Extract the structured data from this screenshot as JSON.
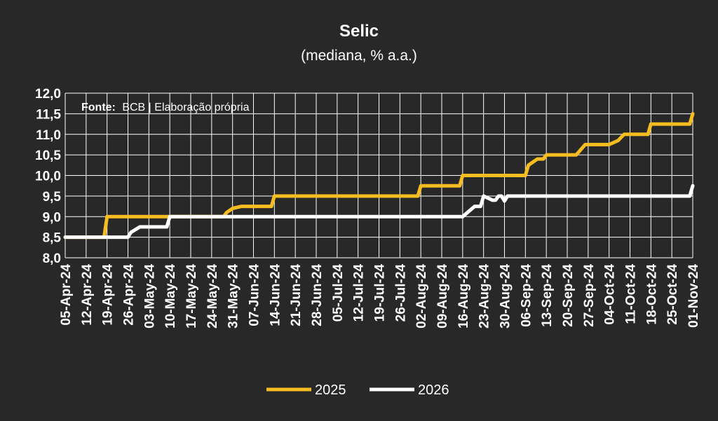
{
  "chart_data": {
    "type": "line",
    "title": "Selic",
    "subtitle": "(mediana, % a.a.)",
    "source_label": "Fonte:",
    "source_text": "BCB | Elaboração própria",
    "ylim": [
      8.0,
      12.0
    ],
    "yticks": [
      "12,0",
      "11,5",
      "11,0",
      "10,5",
      "10,0",
      "9,5",
      "9,0",
      "8,5",
      "8,0"
    ],
    "xlim": [
      "2024-04-05",
      "2024-11-01"
    ],
    "xticks": [
      "05-Apr-24",
      "12-Apr-24",
      "19-Apr-24",
      "26-Apr-24",
      "03-May-24",
      "10-May-24",
      "17-May-24",
      "24-May-24",
      "31-May-24",
      "07-Jun-24",
      "14-Jun-24",
      "21-Jun-24",
      "28-Jun-24",
      "05-Jul-24",
      "12-Jul-24",
      "19-Jul-24",
      "26-Jul-24",
      "02-Aug-24",
      "09-Aug-24",
      "16-Aug-24",
      "23-Aug-24",
      "30-Aug-24",
      "06-Sep-24",
      "13-Sep-24",
      "20-Sep-24",
      "27-Sep-24",
      "04-Oct-24",
      "11-Oct-24",
      "18-Oct-24",
      "25-Oct-24",
      "01-Nov-24"
    ],
    "grid": true,
    "legend_position": "bottom",
    "series": [
      {
        "name": "2025",
        "color": "#f5bd1f",
        "points": [
          [
            "2024-04-05",
            8.5
          ],
          [
            "2024-04-18",
            8.5
          ],
          [
            "2024-04-19",
            9.0
          ],
          [
            "2024-05-10",
            9.0
          ],
          [
            "2024-05-28",
            9.0
          ],
          [
            "2024-05-29",
            9.1
          ],
          [
            "2024-05-31",
            9.2
          ],
          [
            "2024-06-03",
            9.25
          ],
          [
            "2024-06-13",
            9.25
          ],
          [
            "2024-06-14",
            9.5
          ],
          [
            "2024-08-01",
            9.5
          ],
          [
            "2024-08-02",
            9.75
          ],
          [
            "2024-08-15",
            9.75
          ],
          [
            "2024-08-16",
            10.0
          ],
          [
            "2024-09-06",
            10.0
          ],
          [
            "2024-09-07",
            10.25
          ],
          [
            "2024-09-10",
            10.4
          ],
          [
            "2024-09-12",
            10.4
          ],
          [
            "2024-09-13",
            10.5
          ],
          [
            "2024-09-23",
            10.5
          ],
          [
            "2024-09-26",
            10.75
          ],
          [
            "2024-10-04",
            10.75
          ],
          [
            "2024-10-07",
            10.85
          ],
          [
            "2024-10-09",
            11.0
          ],
          [
            "2024-10-17",
            11.0
          ],
          [
            "2024-10-18",
            11.25
          ],
          [
            "2024-10-31",
            11.25
          ],
          [
            "2024-11-01",
            11.5
          ]
        ]
      },
      {
        "name": "2026",
        "color": "#ffffff",
        "points": [
          [
            "2024-04-05",
            8.5
          ],
          [
            "2024-04-26",
            8.5
          ],
          [
            "2024-04-27",
            8.62
          ],
          [
            "2024-04-30",
            8.75
          ],
          [
            "2024-05-09",
            8.75
          ],
          [
            "2024-05-10",
            9.0
          ],
          [
            "2024-08-16",
            9.0
          ],
          [
            "2024-08-20",
            9.25
          ],
          [
            "2024-08-22",
            9.25
          ],
          [
            "2024-08-23",
            9.5
          ],
          [
            "2024-08-26",
            9.4
          ],
          [
            "2024-08-27",
            9.4
          ],
          [
            "2024-08-28",
            9.5
          ],
          [
            "2024-08-29",
            9.5
          ],
          [
            "2024-08-30",
            9.38
          ],
          [
            "2024-08-31",
            9.5
          ],
          [
            "2024-10-31",
            9.5
          ],
          [
            "2024-11-01",
            9.75
          ]
        ]
      }
    ]
  }
}
